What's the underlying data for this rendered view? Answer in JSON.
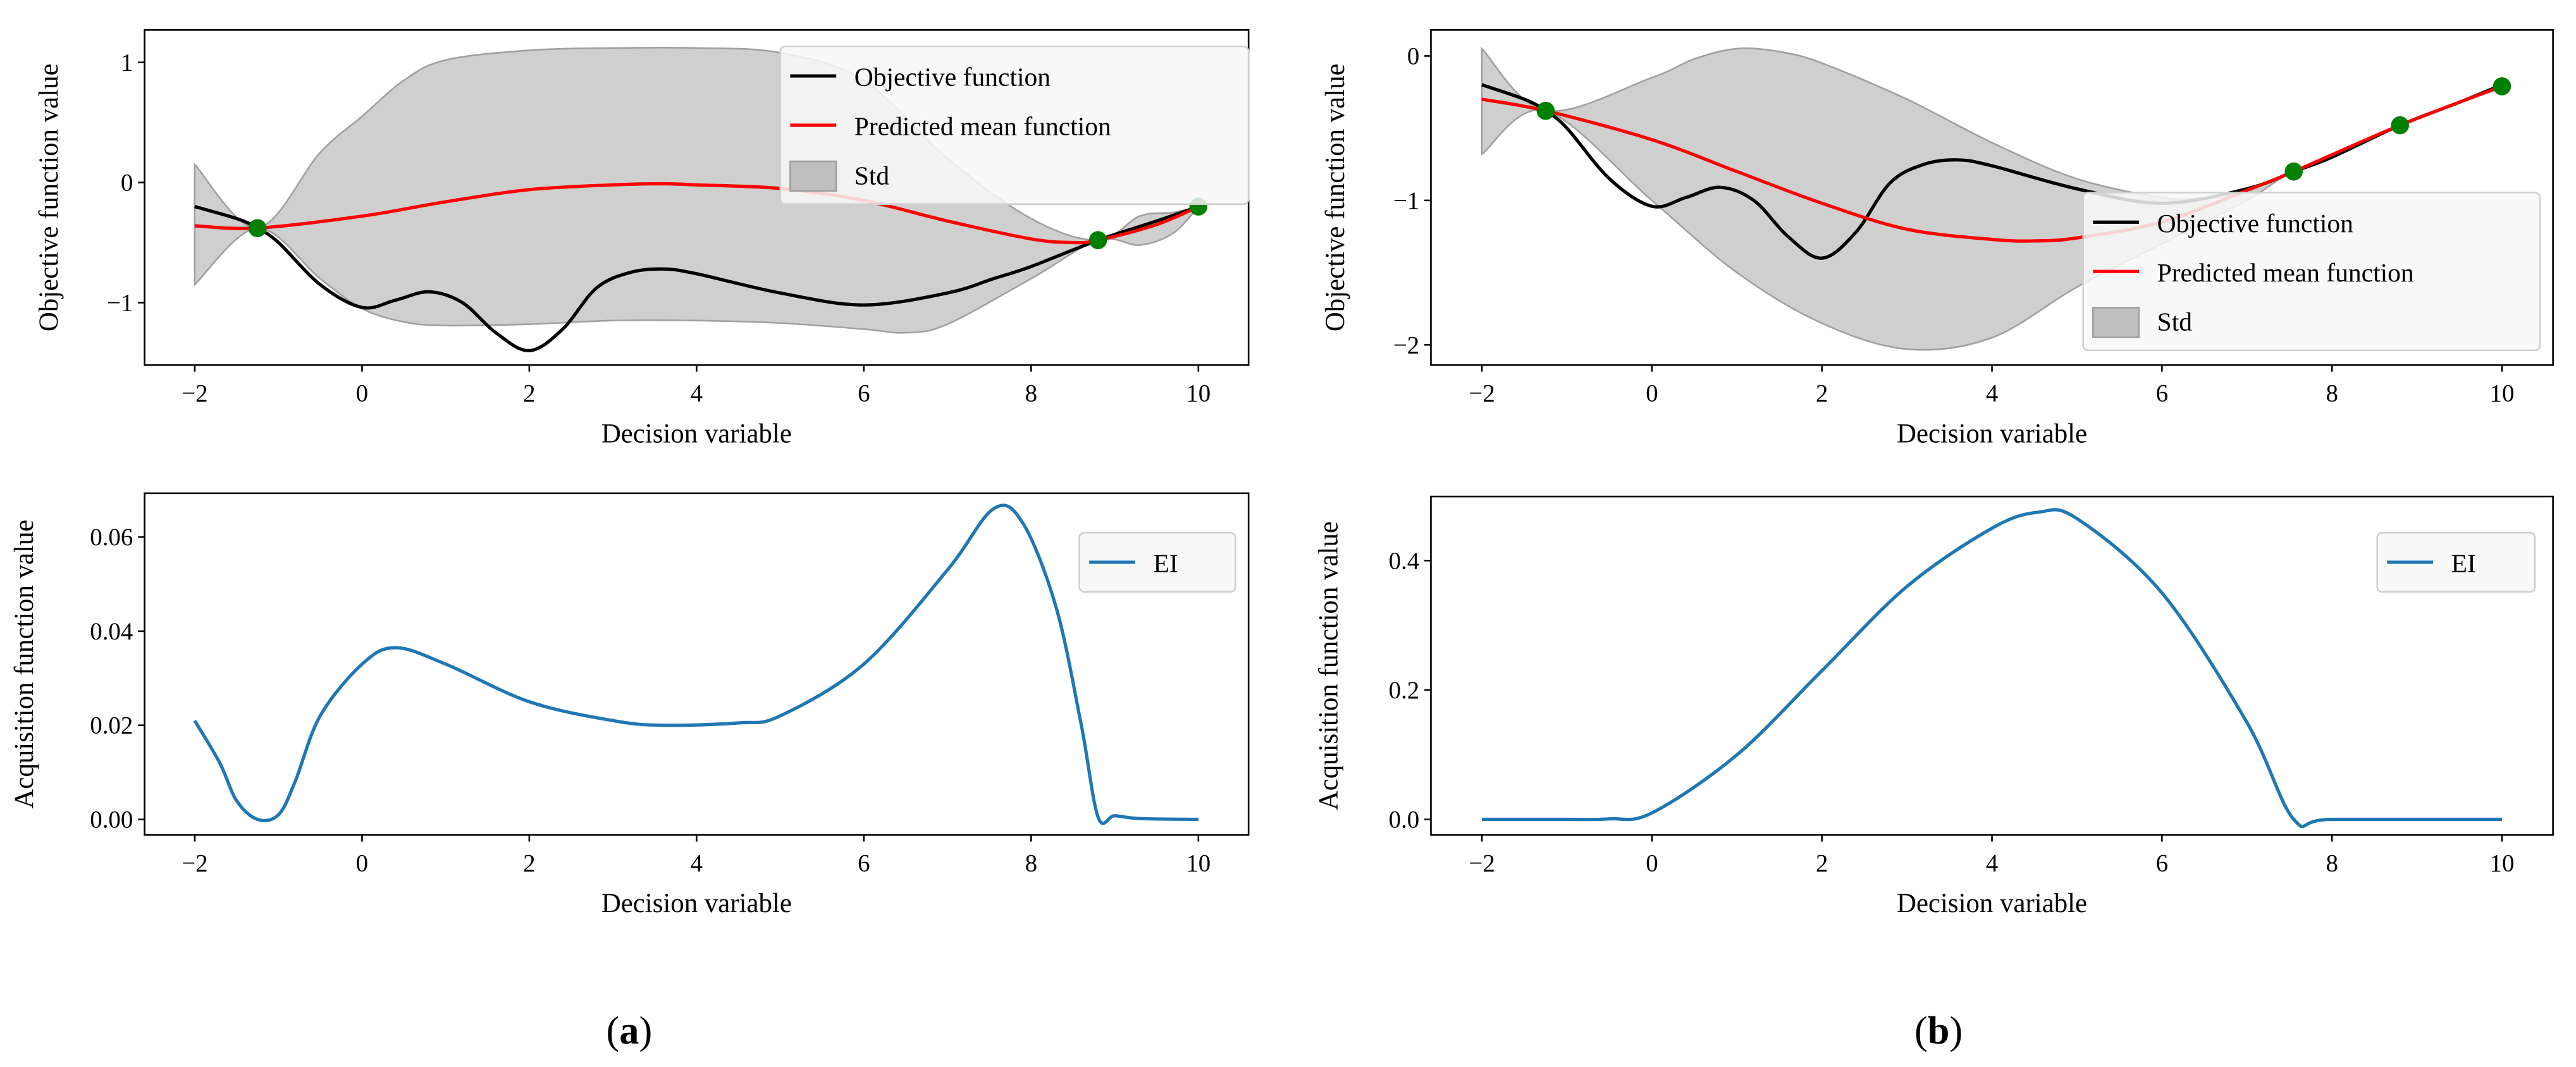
{
  "chart_data": [
    {
      "id": "a-top",
      "type": "line",
      "xlabel": "Decision variable",
      "ylabel": "Objective function value",
      "xlim": [
        -2.6,
        10.6
      ],
      "ylim": [
        -1.52,
        1.27
      ],
      "xticks": [
        -2,
        0,
        2,
        4,
        6,
        8,
        10
      ],
      "yticks": [
        -1,
        0,
        1
      ],
      "legend": {
        "placement": "upper-right",
        "entries": [
          "Objective function",
          "Predicted mean function",
          "Std"
        ]
      },
      "objective": {
        "color": "#000000",
        "x": [
          -2,
          -1.5,
          -1.25,
          -1,
          -0.5,
          0,
          0.4,
          0.8,
          1.2,
          1.6,
          2,
          2.4,
          2.8,
          3.2,
          3.6,
          4,
          5,
          6,
          7,
          7.55,
          8,
          8.8,
          9.5,
          10
        ],
        "y": [
          -0.2,
          -0.3,
          -0.38,
          -0.5,
          -0.85,
          -1.04,
          -0.98,
          -0.91,
          -1.0,
          -1.25,
          -1.4,
          -1.22,
          -0.88,
          -0.75,
          -0.72,
          -0.76,
          -0.92,
          -1.02,
          -0.92,
          -0.8,
          -0.7,
          -0.48,
          -0.32,
          -0.2
        ]
      },
      "mean": {
        "color": "#ff0000",
        "x": [
          -2,
          -1.25,
          0,
          1,
          2,
          3,
          3.6,
          4,
          5,
          6,
          7,
          8,
          8.5,
          8.8,
          9.5,
          10
        ],
        "y": [
          -0.36,
          -0.38,
          -0.28,
          -0.16,
          -0.06,
          -0.02,
          -0.01,
          -0.02,
          -0.05,
          -0.15,
          -0.32,
          -0.47,
          -0.5,
          -0.48,
          -0.35,
          -0.2
        ]
      },
      "std_upper": {
        "x": [
          -2,
          -1.25,
          -0.5,
          0,
          0.5,
          1,
          2,
          3,
          4,
          5,
          6,
          7,
          8,
          8.8,
          9.3,
          9.7,
          10
        ],
        "y": [
          0.15,
          -0.38,
          0.25,
          0.55,
          0.85,
          1.02,
          1.1,
          1.12,
          1.12,
          1.08,
          0.85,
          0.2,
          -0.3,
          -0.48,
          -0.28,
          -0.25,
          -0.2
        ]
      },
      "std_lower": {
        "x": [
          -2,
          -1.25,
          -0.5,
          0,
          0.5,
          1,
          2,
          3,
          4,
          5,
          6,
          6.5,
          7,
          8,
          8.8,
          9.3,
          9.7,
          10
        ],
        "y": [
          -0.85,
          -0.38,
          -0.8,
          -1.05,
          -1.16,
          -1.19,
          -1.18,
          -1.15,
          -1.15,
          -1.17,
          -1.22,
          -1.25,
          -1.18,
          -0.8,
          -0.48,
          -0.52,
          -0.42,
          -0.2
        ]
      },
      "samples": {
        "color": "#008000",
        "x": [
          -1.25,
          8.8,
          10
        ],
        "y": [
          -0.38,
          -0.48,
          -0.2
        ]
      }
    },
    {
      "id": "b-top",
      "type": "line",
      "xlabel": "Decision variable",
      "ylabel": "Objective function value",
      "xlim": [
        -2.6,
        10.6
      ],
      "ylim": [
        -2.14,
        0.18
      ],
      "xticks": [
        -2,
        0,
        2,
        4,
        6,
        8,
        10
      ],
      "yticks": [
        -2,
        -1,
        0
      ],
      "legend": {
        "placement": "lower-right",
        "entries": [
          "Objective function",
          "Predicted mean function",
          "Std"
        ]
      },
      "objective": {
        "color": "#000000",
        "x": [
          -2,
          -1.5,
          -1.25,
          -1,
          -0.5,
          0,
          0.4,
          0.8,
          1.2,
          1.6,
          2,
          2.4,
          2.8,
          3.2,
          3.6,
          4,
          5,
          6,
          7,
          7.55,
          8,
          8.8,
          9.5,
          10
        ],
        "y": [
          -0.2,
          -0.3,
          -0.38,
          -0.5,
          -0.85,
          -1.04,
          -0.98,
          -0.91,
          -1.0,
          -1.25,
          -1.4,
          -1.22,
          -0.88,
          -0.75,
          -0.72,
          -0.76,
          -0.92,
          -1.02,
          -0.92,
          -0.8,
          -0.7,
          -0.48,
          -0.32,
          -0.2
        ]
      },
      "mean": {
        "color": "#ff0000",
        "x": [
          -2,
          -1.25,
          0,
          1,
          2,
          3,
          4,
          4.5,
          5,
          6,
          7,
          7.55,
          8.8,
          10
        ],
        "y": [
          -0.3,
          -0.38,
          -0.58,
          -0.8,
          -1.02,
          -1.2,
          -1.27,
          -1.28,
          -1.26,
          -1.15,
          -0.93,
          -0.8,
          -0.48,
          -0.21
        ]
      },
      "std_upper": {
        "x": [
          -2,
          -1.25,
          0,
          0.5,
          1,
          1.5,
          2,
          3,
          4,
          5,
          6,
          6.5,
          7,
          7.55,
          8.8,
          10
        ],
        "y": [
          0.05,
          -0.38,
          -0.15,
          -0.02,
          0.05,
          0.03,
          -0.05,
          -0.3,
          -0.6,
          -0.85,
          -0.98,
          -0.98,
          -0.92,
          -0.8,
          -0.48,
          -0.21
        ]
      },
      "std_lower": {
        "x": [
          -2,
          -1.25,
          0,
          1,
          2,
          3,
          4,
          5,
          6,
          7,
          7.55,
          8.8,
          10
        ],
        "y": [
          -0.68,
          -0.38,
          -1.0,
          -1.5,
          -1.85,
          -2.03,
          -1.95,
          -1.6,
          -1.3,
          -1.0,
          -0.8,
          -0.48,
          -0.21
        ]
      },
      "samples": {
        "color": "#008000",
        "x": [
          -1.25,
          7.55,
          8.8,
          10
        ],
        "y": [
          -0.38,
          -0.8,
          -0.48,
          -0.21
        ]
      }
    },
    {
      "id": "a-bottom",
      "type": "line",
      "xlabel": "Decision variable",
      "ylabel": "Acquisition function value",
      "xlim": [
        -2.6,
        10.6
      ],
      "ylim": [
        -0.0033,
        0.0693
      ],
      "xticks": [
        -2,
        0,
        2,
        4,
        6,
        8,
        10
      ],
      "yticks": [
        0,
        0.02,
        0.04,
        0.06
      ],
      "ytick_labels": [
        "0.00",
        "0.02",
        "0.04",
        "0.06"
      ],
      "legend": {
        "placement": "upper-right",
        "entries": [
          "EI"
        ]
      },
      "ei": {
        "color": "#1f77b4",
        "x": [
          -2,
          -1.7,
          -1.5,
          -1.25,
          -1.0,
          -0.8,
          -0.5,
          0,
          0.4,
          1,
          2,
          3,
          3.6,
          4.5,
          5,
          6,
          7,
          7.55,
          7.9,
          8.3,
          8.6,
          8.8,
          9,
          9.3,
          10
        ],
        "y": [
          0.021,
          0.012,
          0.004,
          0,
          0.001,
          0.008,
          0.022,
          0.033,
          0.0365,
          0.033,
          0.025,
          0.021,
          0.02,
          0.0205,
          0.022,
          0.033,
          0.053,
          0.066,
          0.063,
          0.045,
          0.02,
          0.0005,
          0.0008,
          0.0002,
          0
        ]
      }
    },
    {
      "id": "b-bottom",
      "type": "line",
      "xlabel": "Decision variable",
      "ylabel": "Acquisition function value",
      "xlim": [
        -2.6,
        10.6
      ],
      "ylim": [
        -0.024,
        0.499
      ],
      "xticks": [
        -2,
        0,
        2,
        4,
        6,
        8,
        10
      ],
      "yticks": [
        0,
        0.2,
        0.4
      ],
      "ytick_labels": [
        "0.0",
        "0.2",
        "0.4"
      ],
      "legend": {
        "placement": "upper-right",
        "entries": [
          "EI"
        ]
      },
      "ei": {
        "color": "#1f77b4",
        "x": [
          -2,
          -1,
          -0.5,
          0,
          1,
          2,
          3,
          4,
          4.55,
          5,
          6,
          7,
          7.55,
          8,
          10
        ],
        "y": [
          0,
          0,
          0.001,
          0.01,
          0.1,
          0.23,
          0.36,
          0.45,
          0.475,
          0.465,
          0.35,
          0.15,
          0,
          0,
          0
        ]
      }
    }
  ],
  "captions": {
    "a": "a",
    "b": "b"
  }
}
